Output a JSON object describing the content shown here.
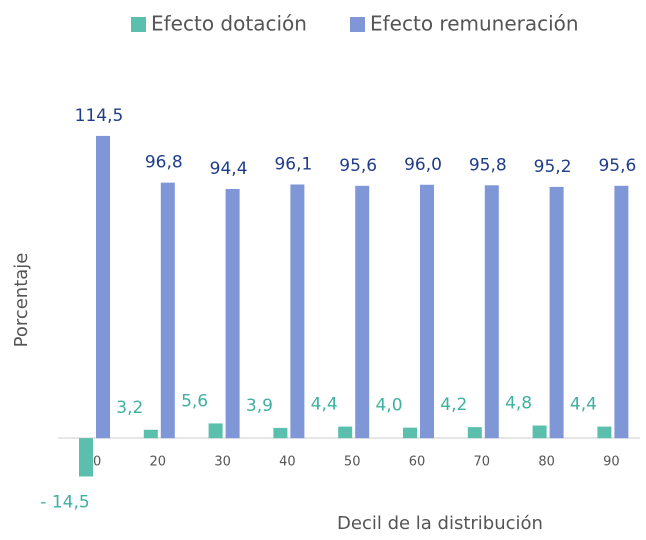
{
  "chart_data": {
    "type": "bar",
    "x_label": "Decil de la distribución",
    "y_label": "Porcentaje",
    "categories": [
      "10",
      "20",
      "30",
      "40",
      "50",
      "60",
      "70",
      "80",
      "90"
    ],
    "series": [
      {
        "name": "Efecto dotación",
        "color": "#5bbfad",
        "label_color": "#3fb0a0",
        "values": [
          -14.5,
          3.2,
          5.6,
          3.9,
          4.4,
          4.0,
          4.2,
          4.8,
          4.4
        ],
        "value_labels": [
          "- 14,5",
          "3,2",
          "5,6",
          "3,9",
          "4,4",
          "4,0",
          "4,2",
          "4,8",
          "4,4"
        ]
      },
      {
        "name": "Efecto remuneración",
        "color": "#7f97d6",
        "label_color": "#1f3d8a",
        "values": [
          114.5,
          96.8,
          94.4,
          96.1,
          95.6,
          96.0,
          95.8,
          95.2,
          95.6
        ],
        "value_labels": [
          "114,5",
          "96,8",
          "94,4",
          "96,1",
          "95,6",
          "96,0",
          "95,8",
          "95,2",
          "95,6"
        ]
      }
    ],
    "ylim": [
      -20,
      130
    ]
  }
}
